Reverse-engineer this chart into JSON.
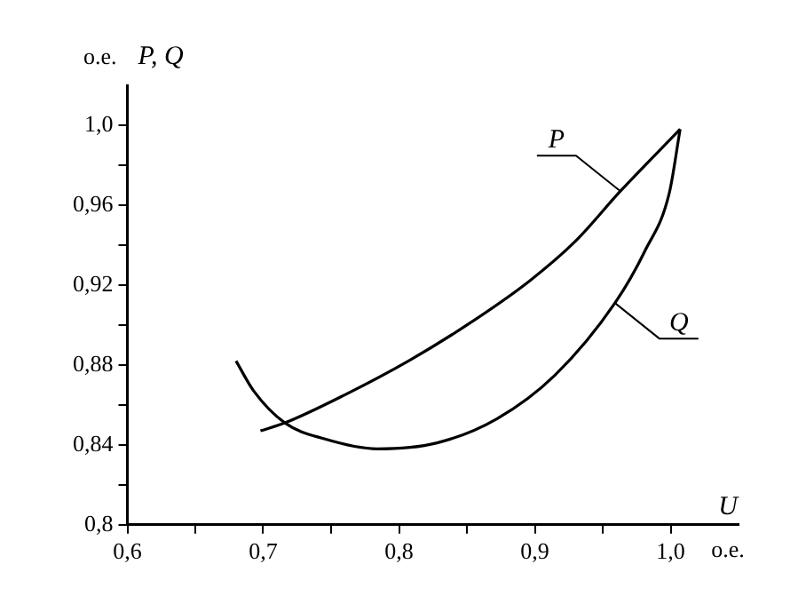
{
  "chart_data": {
    "type": "line",
    "xlabel": "U",
    "ylabel": "P, Q",
    "annotations": [
      "о.е.",
      "о.е."
    ],
    "legend": false,
    "grid": false,
    "marker": "none",
    "line_style": "solid",
    "xlim": [
      0.6,
      1.05
    ],
    "ylim": [
      0.8,
      1.02
    ],
    "xticks": [
      {
        "value": 0.6,
        "label": "0,6"
      },
      {
        "value": 0.65,
        "label": null
      },
      {
        "value": 0.7,
        "label": "0,7"
      },
      {
        "value": 0.75,
        "label": null
      },
      {
        "value": 0.8,
        "label": "0,8"
      },
      {
        "value": 0.85,
        "label": null
      },
      {
        "value": 0.9,
        "label": "0,9"
      },
      {
        "value": 0.95,
        "label": null
      },
      {
        "value": 1.0,
        "label": "1,0"
      }
    ],
    "yticks": [
      {
        "value": 0.8,
        "label": "0,8"
      },
      {
        "value": 0.82,
        "label": null
      },
      {
        "value": 0.84,
        "label": "0,84"
      },
      {
        "value": 0.86,
        "label": null
      },
      {
        "value": 0.88,
        "label": "0,88"
      },
      {
        "value": 0.9,
        "label": null
      },
      {
        "value": 0.92,
        "label": "0,92"
      },
      {
        "value": 0.94,
        "label": null
      },
      {
        "value": 0.96,
        "label": "0,96"
      },
      {
        "value": 0.98,
        "label": null
      },
      {
        "value": 1.0,
        "label": "1,0"
      }
    ],
    "series": [
      {
        "name": "P",
        "color": "#000000",
        "x": [
          0.698,
          0.716,
          0.76,
          0.807,
          0.85,
          0.896,
          0.93,
          0.963,
          1.007
        ],
        "values": [
          0.847,
          0.851,
          0.865,
          0.882,
          0.9,
          0.922,
          0.942,
          0.967,
          0.998
        ]
      },
      {
        "name": "Q",
        "color": "#000000",
        "x": [
          0.68,
          0.693,
          0.716,
          0.745,
          0.784,
          0.828,
          0.872,
          0.915,
          0.959,
          0.981,
          0.999,
          1.007
        ],
        "values": [
          0.882,
          0.867,
          0.851,
          0.843,
          0.838,
          0.841,
          0.853,
          0.875,
          0.911,
          0.937,
          0.966,
          0.998
        ]
      }
    ]
  }
}
